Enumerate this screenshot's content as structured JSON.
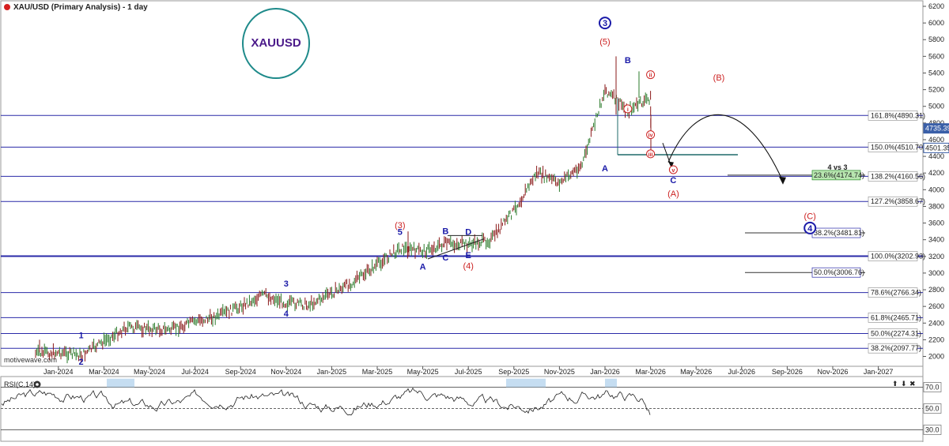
{
  "header": {
    "title": "XAU/USD (Primary Analysis) - 1 day",
    "status_color": "#d62020"
  },
  "logo": {
    "text": "XAUUSD",
    "text_color": "#4b1a8a",
    "ring_color": "#1e8a8a"
  },
  "watermark": "motivewave.com",
  "chart_data": {
    "type": "candlestick",
    "y_ticks": [
      2000,
      2200,
      2400,
      2600,
      2800,
      3000,
      3200,
      3400,
      3600,
      3800,
      4000,
      4200,
      4400,
      4600,
      4800,
      5000,
      5200,
      5400,
      5600,
      5800,
      6000,
      6200
    ],
    "x_ticks": [
      "Jan-2024",
      "Mar-2024",
      "May-2024",
      "Jul-2024",
      "Sep-2024",
      "Nov-2024",
      "Jan-2025",
      "Mar-2025",
      "May-2025",
      "Jul-2025",
      "Sep-2025",
      "Nov-2025",
      "Jan-2026",
      "Mar-2026",
      "May-2026",
      "Jul-2026",
      "Sep-2026",
      "Nov-2026",
      "Jan-2027"
    ],
    "price_markers": [
      {
        "label": "4735.39",
        "value": 4735.39,
        "bg": "#3a5fa8"
      },
      {
        "label": "4501.35",
        "value": 4501.35,
        "bg": "#ffffff"
      }
    ],
    "fib_lines": [
      {
        "label": "161.8%(4890.31)",
        "value": 4890.31,
        "color": "#2a2aa8"
      },
      {
        "label": "150.0%(4510.70)",
        "value": 4510.7,
        "color": "#2a2aa8"
      },
      {
        "label": "138.2%(4160.56)",
        "value": 4160.56,
        "color": "#2a2aa8"
      },
      {
        "label": "127.2%(3858.67)",
        "value": 3858.67,
        "color": "#2a2aa8"
      },
      {
        "label": "100.0%(3202.93)",
        "value": 3202.93,
        "color": "#2a2aa8",
        "thick": true
      },
      {
        "label": "78.6%(2766.34)",
        "value": 2766.34,
        "color": "#2a2aa8"
      },
      {
        "label": "61.8%(2465.71)",
        "value": 2465.71,
        "color": "#2a2aa8"
      },
      {
        "label": "50.0%(2274.31)",
        "value": 2274.31,
        "color": "#2a2aa8"
      },
      {
        "label": "38.2%(2097.77)",
        "value": 2097.77,
        "color": "#2a2aa8"
      }
    ],
    "target_zones": [
      {
        "label": "23.6%(4174.74)",
        "value": 4174.74,
        "highlight": true
      },
      {
        "label": "38.2%(3481.81)",
        "value": 3481.81,
        "highlight": false
      },
      {
        "label": "50.0%(3006.76)",
        "value": 3006.76,
        "highlight": false
      }
    ],
    "wave_labels": [
      {
        "text": "1",
        "x": "Feb-2024",
        "y": 2220,
        "style": "blue"
      },
      {
        "text": "2",
        "x": "Feb-2024",
        "y": 1900,
        "style": "blue"
      },
      {
        "text": "3",
        "x": "Nov-2024",
        "y": 2840,
        "style": "blue"
      },
      {
        "text": "4",
        "x": "Nov-2024",
        "y": 2480,
        "style": "blue"
      },
      {
        "text": "(3)",
        "x": "Apr-2025",
        "y": 3540,
        "style": "red"
      },
      {
        "text": "5",
        "x": "Apr-2025",
        "y": 3460,
        "style": "blue"
      },
      {
        "text": "A",
        "x": "May-2025",
        "y": 3040,
        "style": "blue"
      },
      {
        "text": "B",
        "x": "Jun-2025",
        "y": 3470,
        "style": "blue"
      },
      {
        "text": "C",
        "x": "Jun-2025",
        "y": 3150,
        "style": "blue"
      },
      {
        "text": "D",
        "x": "Jul-2025",
        "y": 3460,
        "style": "blue"
      },
      {
        "text": "E",
        "x": "Jul-2025",
        "y": 3180,
        "style": "blue"
      },
      {
        "text": "(4)",
        "x": "Jul-2025",
        "y": 3050,
        "style": "red"
      },
      {
        "text": "(5)",
        "x": "Jan-2026",
        "y": 5740,
        "style": "red"
      },
      {
        "text": "A",
        "x": "Jan-2026",
        "y": 4220,
        "style": "blue"
      },
      {
        "text": "B",
        "x": "Feb-2026",
        "y": 5520,
        "style": "blue"
      },
      {
        "text": "C",
        "x": "Apr-2026",
        "y": 4080,
        "style": "blue"
      },
      {
        "text": "(A)",
        "x": "Apr-2026",
        "y": 3920,
        "style": "red"
      },
      {
        "text": "(B)",
        "x": "Jun-2026",
        "y": 5310,
        "style": "red"
      },
      {
        "text": "(C)",
        "x": "Oct-2026",
        "y": 3650,
        "style": "red"
      }
    ],
    "circled_labels": [
      {
        "text": "3",
        "x": "Jan-2026",
        "y": 6000,
        "color": "#1a1aa8"
      },
      {
        "text": "4",
        "x": "Oct-2026",
        "y": 3540,
        "color": "#1a1aa8"
      },
      {
        "text": "ii",
        "x": "Mar-2026",
        "y": 5380,
        "color": "#cc2222"
      },
      {
        "text": "i",
        "x": "Feb-2026",
        "y": 4970,
        "color": "#cc2222"
      },
      {
        "text": "iv",
        "x": "Mar-2026",
        "y": 4660,
        "color": "#cc2222"
      },
      {
        "text": "iii",
        "x": "Mar-2026",
        "y": 4430,
        "color": "#cc2222"
      },
      {
        "text": "v",
        "x": "Apr-2026",
        "y": 4240,
        "color": "#cc2222"
      }
    ],
    "annotations": [
      {
        "text": "4 vs 3",
        "value": 4270
      }
    ],
    "path_points": [
      {
        "x": "Dec-2023",
        "y": 2030
      },
      {
        "x": "Jan-2024",
        "y": 2050
      },
      {
        "x": "Feb-2024",
        "y": 2010
      },
      {
        "x": "Mar-2024",
        "y": 2180
      },
      {
        "x": "Apr-2024",
        "y": 2350
      },
      {
        "x": "May-2024",
        "y": 2330
      },
      {
        "x": "Jun-2024",
        "y": 2320
      },
      {
        "x": "Jul-2024",
        "y": 2420
      },
      {
        "x": "Aug-2024",
        "y": 2480
      },
      {
        "x": "Sep-2024",
        "y": 2600
      },
      {
        "x": "Oct-2024",
        "y": 2740
      },
      {
        "x": "Nov-2024",
        "y": 2640
      },
      {
        "x": "Dec-2024",
        "y": 2620
      },
      {
        "x": "Jan-2025",
        "y": 2760
      },
      {
        "x": "Feb-2025",
        "y": 2900
      },
      {
        "x": "Mar-2025",
        "y": 3100
      },
      {
        "x": "Apr-2025",
        "y": 3300
      },
      {
        "x": "May-2025",
        "y": 3260
      },
      {
        "x": "Jun-2025",
        "y": 3350
      },
      {
        "x": "Jul-2025",
        "y": 3340
      },
      {
        "x": "Aug-2025",
        "y": 3400
      },
      {
        "x": "Sep-2025",
        "y": 3750
      },
      {
        "x": "Oct-2025",
        "y": 4200
      },
      {
        "x": "Nov-2025",
        "y": 4080
      },
      {
        "x": "Dec-2025",
        "y": 4300
      },
      {
        "x": "Jan-2026",
        "y": 5200
      },
      {
        "x": "Feb-2026",
        "y": 4950
      },
      {
        "x": "Mar-2026",
        "y": 5100
      },
      {
        "x": "Mar-2026b",
        "y": 4500
      }
    ],
    "rsi": {
      "label": "RSI(C,14)",
      "ticks": [
        70.0,
        50.0,
        30.0
      ],
      "last": 30.0
    }
  },
  "rsi_controls": {
    "up": "⬆",
    "down": "⬇",
    "close": "✖"
  }
}
